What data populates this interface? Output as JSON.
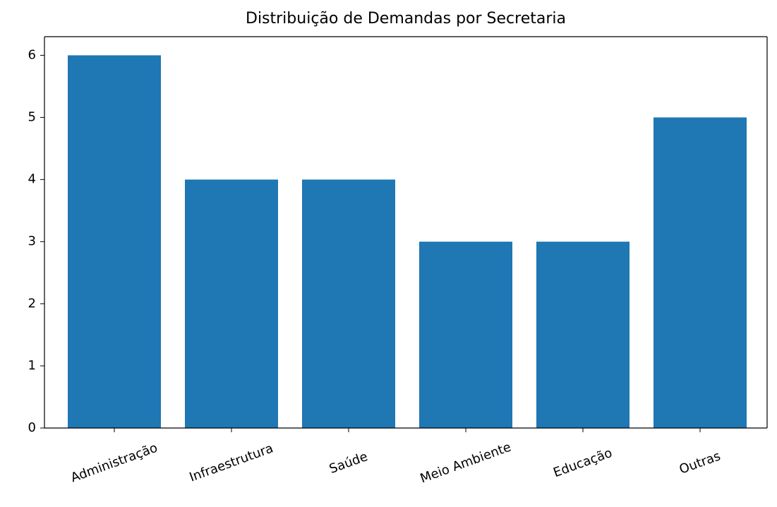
{
  "chart_data": {
    "type": "bar",
    "title": "Distribuição de Demandas por Secretaria",
    "categories": [
      "Administração",
      "Infraestrutura",
      "Saúde",
      "Meio Ambiente",
      "Educação",
      "Outras"
    ],
    "values": [
      6,
      4,
      4,
      3,
      3,
      5
    ],
    "color": "#1f77b4",
    "ylim": [
      0,
      6.3
    ],
    "yticks": [
      0,
      1,
      2,
      3,
      4,
      5,
      6
    ],
    "grid": false
  }
}
